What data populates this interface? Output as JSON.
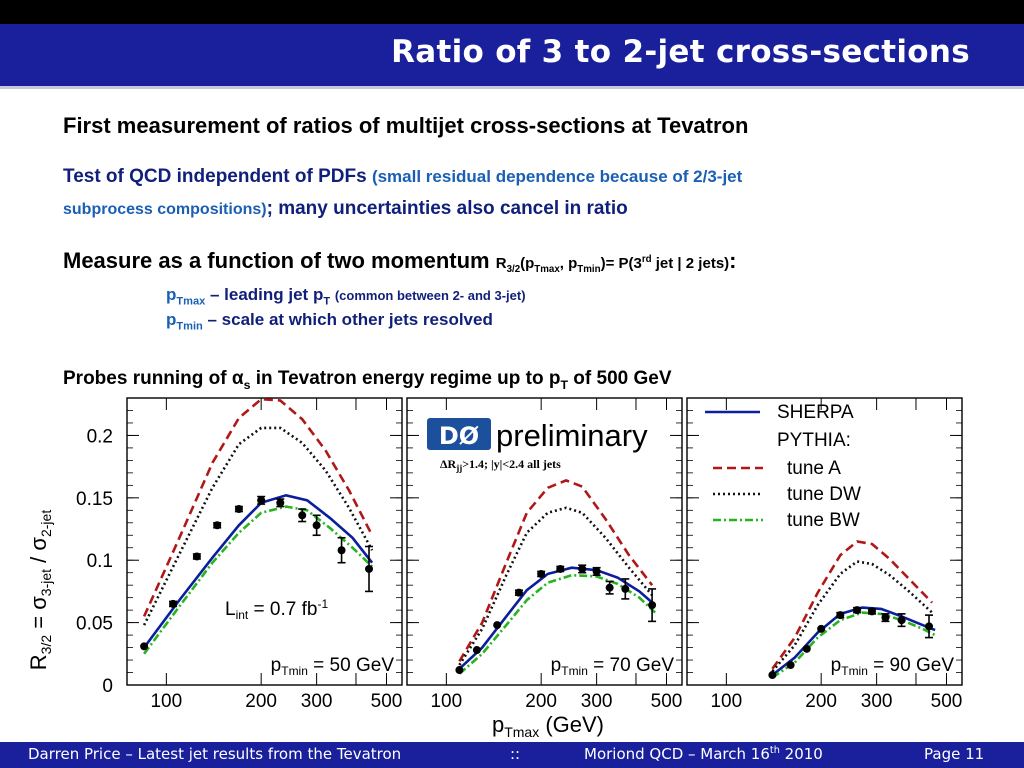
{
  "slide": {
    "title": "Ratio of 3 to 2-jet cross-sections",
    "colors": {
      "title_bar": "#1a1f9c",
      "top_bar": "#000000",
      "body_blue": "#1a5fb4",
      "navy": "#101f7a"
    }
  },
  "text": {
    "line1": "First measurement of ratios of multijet cross-sections at Tevatron",
    "line2_main": "Test of QCD independent of PDFs ",
    "line2_paren": "(small residual dependence because of 2/3-jet",
    "line3_paren": "subprocess compositions)",
    "line3_main": "; many uncertainties also cancel in ratio",
    "line4_main": "Measure as a function of two momentum ",
    "line4_formula": "R3/2(pTmax, pTmin)= P(3rd jet | 2 jets)",
    "line4_colon": ":",
    "line5_var": "pTmax",
    "line5_desc": " – leading jet pT ",
    "line5_note": "(common between 2- and 3-jet)",
    "line6_var": "pTmin",
    "line6_desc": " – scale at which other jets resolved",
    "line7": "Probes running of αs in Tevatron energy regime up to pT of 500 GeV"
  },
  "footer": {
    "left": "Darren Price – Latest jet results from the Tevatron",
    "sep": "::",
    "middle": "Moriond QCD – March 16th 2010",
    "right": "Page 11"
  },
  "chart_data": {
    "type": "scatter",
    "ylabel": "R3/2 = σ3-jet / σ2-jet",
    "xlabel": "pTmax (GeV)",
    "ylim": [
      0,
      0.23
    ],
    "y_ticks": [
      "0",
      "0.05",
      "0.1",
      "0.15",
      "0.2"
    ],
    "x_ticks": [
      "100",
      "200",
      "300",
      "500"
    ],
    "x_scale": "log",
    "experiment_logo": "DØ",
    "logo_text": "preliminary",
    "cut_label": "ΔRjj>1.4;  |y|<2.4 all jets",
    "lumi_label": "Lint = 0.7 fb-1",
    "legend": {
      "title_sherpa": "SHERPA",
      "title_pythia": "PYTHIA:",
      "entries": [
        "tune A",
        "tune DW",
        "tune BW"
      ]
    },
    "series_styles": {
      "SHERPA": {
        "color": "#0b1f9a",
        "dash": "solid"
      },
      "tune A": {
        "color": "#b01818",
        "dash": "dashed"
      },
      "tune DW": {
        "color": "#111111",
        "dash": "dotted"
      },
      "tune BW": {
        "color": "#27b41e",
        "dash": "dashdot"
      }
    },
    "panels": [
      {
        "label": "pTmin = 50 GeV",
        "x": [
          85,
          105,
          125,
          145,
          170,
          200,
          230,
          270,
          300,
          360,
          440
        ],
        "y": [
          0.031,
          0.065,
          0.103,
          0.128,
          0.141,
          0.148,
          0.146,
          0.136,
          0.128,
          0.108,
          0.093
        ],
        "yerr": [
          0.001,
          0.002,
          0.002,
          0.002,
          0.002,
          0.003,
          0.003,
          0.005,
          0.008,
          0.01,
          0.018
        ],
        "curves": {
          "SHERPA": [
            [
              85,
              0.03
            ],
            [
              110,
              0.068
            ],
            [
              140,
              0.102
            ],
            [
              170,
              0.128
            ],
            [
              200,
              0.146
            ],
            [
              240,
              0.152
            ],
            [
              280,
              0.148
            ],
            [
              330,
              0.134
            ],
            [
              390,
              0.118
            ],
            [
              450,
              0.098
            ]
          ],
          "tune A": [
            [
              85,
              0.055
            ],
            [
              110,
              0.118
            ],
            [
              140,
              0.178
            ],
            [
              170,
              0.214
            ],
            [
              200,
              0.229
            ],
            [
              230,
              0.228
            ],
            [
              270,
              0.213
            ],
            [
              320,
              0.188
            ],
            [
              380,
              0.156
            ],
            [
              450,
              0.12
            ]
          ],
          "tune DW": [
            [
              85,
              0.048
            ],
            [
              110,
              0.105
            ],
            [
              140,
              0.158
            ],
            [
              170,
              0.193
            ],
            [
              200,
              0.206
            ],
            [
              230,
              0.206
            ],
            [
              270,
              0.194
            ],
            [
              320,
              0.172
            ],
            [
              380,
              0.142
            ],
            [
              450,
              0.108
            ]
          ],
          "tune BW": [
            [
              85,
              0.025
            ],
            [
              110,
              0.063
            ],
            [
              140,
              0.098
            ],
            [
              170,
              0.122
            ],
            [
              200,
              0.138
            ],
            [
              240,
              0.143
            ],
            [
              280,
              0.14
            ],
            [
              330,
              0.126
            ],
            [
              390,
              0.11
            ],
            [
              450,
              0.095
            ]
          ]
        }
      },
      {
        "label": "pTmin = 70 GeV",
        "x": [
          110,
          125,
          145,
          170,
          200,
          230,
          270,
          300,
          330,
          370,
          450
        ],
        "y": [
          0.012,
          0.028,
          0.048,
          0.074,
          0.089,
          0.093,
          0.093,
          0.091,
          0.078,
          0.077,
          0.064
        ],
        "yerr": [
          0.001,
          0.001,
          0.001,
          0.002,
          0.002,
          0.002,
          0.003,
          0.003,
          0.005,
          0.008,
          0.013
        ],
        "curves": {
          "SHERPA": [
            [
              110,
              0.013
            ],
            [
              130,
              0.03
            ],
            [
              155,
              0.055
            ],
            [
              180,
              0.076
            ],
            [
              210,
              0.089
            ],
            [
              250,
              0.094
            ],
            [
              300,
              0.092
            ],
            [
              350,
              0.086
            ],
            [
              410,
              0.075
            ],
            [
              460,
              0.064
            ]
          ],
          "tune A": [
            [
              110,
              0.019
            ],
            [
              130,
              0.05
            ],
            [
              155,
              0.098
            ],
            [
              180,
              0.138
            ],
            [
              210,
              0.158
            ],
            [
              240,
              0.164
            ],
            [
              270,
              0.159
            ],
            [
              320,
              0.133
            ],
            [
              380,
              0.104
            ],
            [
              450,
              0.08
            ]
          ],
          "tune DW": [
            [
              110,
              0.016
            ],
            [
              130,
              0.045
            ],
            [
              155,
              0.088
            ],
            [
              180,
              0.122
            ],
            [
              210,
              0.138
            ],
            [
              240,
              0.142
            ],
            [
              270,
              0.138
            ],
            [
              320,
              0.118
            ],
            [
              380,
              0.094
            ],
            [
              450,
              0.072
            ]
          ],
          "tune BW": [
            [
              110,
              0.009
            ],
            [
              130,
              0.025
            ],
            [
              155,
              0.048
            ],
            [
              180,
              0.068
            ],
            [
              210,
              0.082
            ],
            [
              250,
              0.088
            ],
            [
              300,
              0.087
            ],
            [
              350,
              0.081
            ],
            [
              410,
              0.07
            ],
            [
              460,
              0.058
            ]
          ]
        }
      },
      {
        "label": "pTmin = 90 GeV",
        "x": [
          140,
          160,
          180,
          200,
          230,
          260,
          290,
          320,
          360,
          440
        ],
        "y": [
          0.008,
          0.016,
          0.029,
          0.045,
          0.056,
          0.06,
          0.059,
          0.054,
          0.052,
          0.047
        ],
        "yerr": [
          0.001,
          0.001,
          0.001,
          0.001,
          0.002,
          0.002,
          0.002,
          0.003,
          0.005,
          0.009
        ],
        "curves": {
          "SHERPA": [
            [
              140,
              0.008
            ],
            [
              165,
              0.022
            ],
            [
              195,
              0.042
            ],
            [
              230,
              0.057
            ],
            [
              270,
              0.062
            ],
            [
              310,
              0.061
            ],
            [
              360,
              0.055
            ],
            [
              420,
              0.048
            ],
            [
              460,
              0.044
            ]
          ],
          "tune A": [
            [
              140,
              0.013
            ],
            [
              165,
              0.038
            ],
            [
              195,
              0.074
            ],
            [
              230,
              0.104
            ],
            [
              260,
              0.115
            ],
            [
              290,
              0.113
            ],
            [
              330,
              0.101
            ],
            [
              380,
              0.085
            ],
            [
              450,
              0.066
            ]
          ],
          "tune DW": [
            [
              140,
              0.011
            ],
            [
              165,
              0.032
            ],
            [
              195,
              0.064
            ],
            [
              230,
              0.089
            ],
            [
              260,
              0.099
            ],
            [
              290,
              0.097
            ],
            [
              330,
              0.088
            ],
            [
              380,
              0.075
            ],
            [
              450,
              0.058
            ]
          ],
          "tune BW": [
            [
              140,
              0.006
            ],
            [
              165,
              0.018
            ],
            [
              195,
              0.038
            ],
            [
              230,
              0.052
            ],
            [
              270,
              0.058
            ],
            [
              310,
              0.057
            ],
            [
              360,
              0.052
            ],
            [
              420,
              0.045
            ],
            [
              460,
              0.04
            ]
          ]
        }
      }
    ]
  }
}
